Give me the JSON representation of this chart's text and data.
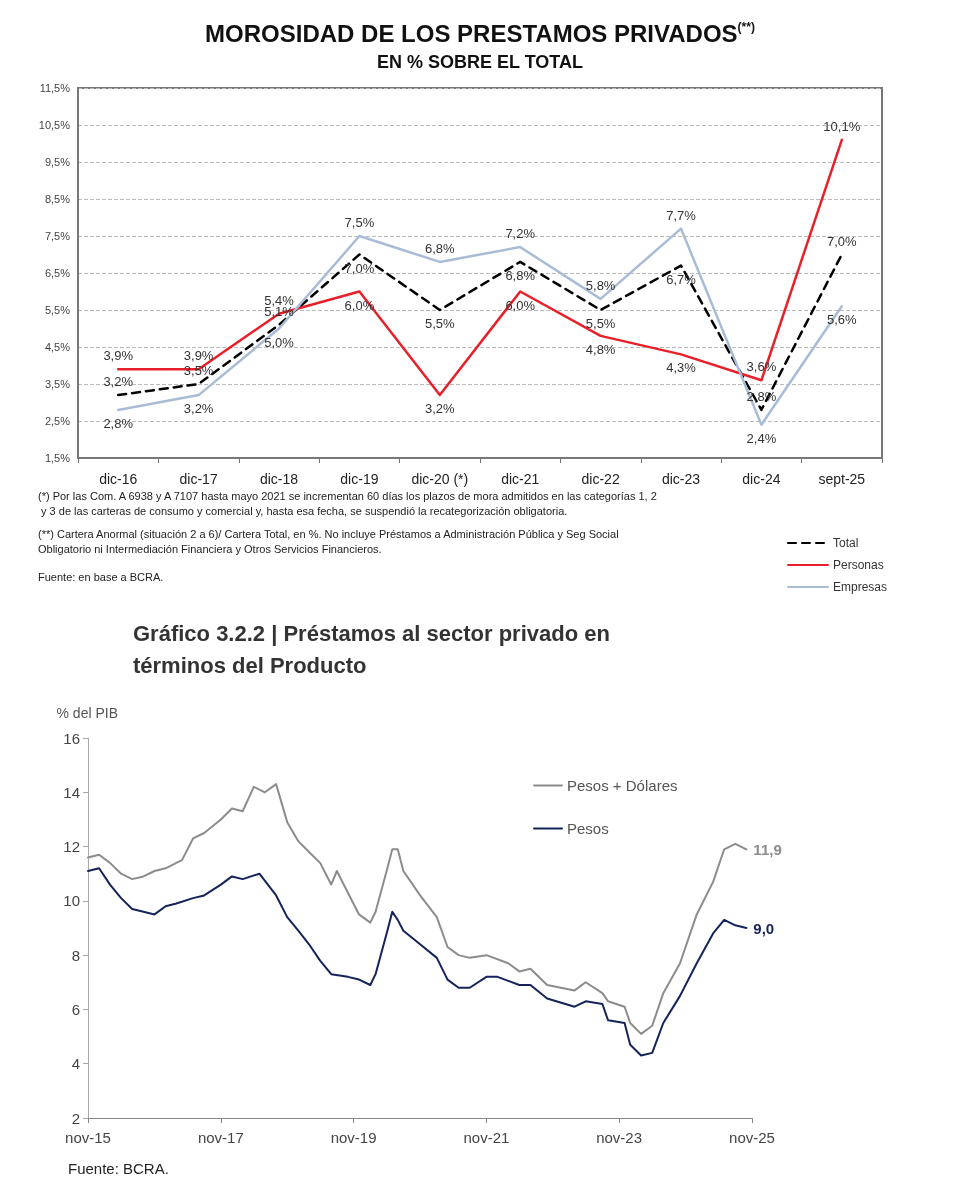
{
  "chart_data": [
    {
      "type": "line",
      "title": "MOROSIDAD DE LOS PRESTAMOS PRIVADOS$^{(**)}$",
      "subtitle": "EN % SOBRE EL TOTAL",
      "categories": [
        "dic-16",
        "dic-17",
        "dic-18",
        "dic-19",
        "dic-20 (*)",
        "dic-21",
        "dic-22",
        "dic-23",
        "dic-24",
        "sept-25"
      ],
      "series": [
        {
          "name": "Total",
          "color": "#000000",
          "line_style": "dashed",
          "values": [
            3.2,
            3.5,
            5.1,
            7.0,
            5.5,
            6.8,
            5.5,
            6.7,
            2.8,
            7.0
          ],
          "value_labels": [
            "3,2%",
            "3,5%",
            "5,1%",
            "7,0%",
            "5,5%",
            "6,8%",
            "5,5%",
            "6,7%",
            "2,8%",
            "7,0%"
          ]
        },
        {
          "name": "Personas",
          "color": "#e8202a",
          "line_style": "solid",
          "values": [
            3.9,
            3.9,
            5.4,
            6.0,
            3.2,
            6.0,
            4.8,
            4.3,
            3.6,
            10.1
          ],
          "value_labels": [
            "3,9%",
            "3,9%",
            "5,4%",
            "6,0%",
            "3,2%",
            "6,0%",
            "4,8%",
            "4,3%",
            "3,6%",
            "10,1%"
          ]
        },
        {
          "name": "Empresas",
          "color": "#a9bcd6",
          "line_style": "solid",
          "values": [
            2.8,
            3.2,
            5.0,
            7.5,
            6.8,
            7.2,
            5.8,
            7.7,
            2.4,
            5.6
          ],
          "value_labels": [
            "2,8%",
            "3,2%",
            "5,0%",
            "7,5%",
            "6,8%",
            "7,2%",
            "5,8%",
            "7,7%",
            "2,4%",
            "5,6%"
          ]
        }
      ],
      "ylim": [
        1.5,
        11.5
      ],
      "yticks": [
        {
          "value": 1.5,
          "label": "1,5%"
        },
        {
          "value": 2.5,
          "label": "2,5%"
        },
        {
          "value": 3.5,
          "label": "3,5%"
        },
        {
          "value": 4.5,
          "label": "4,5%"
        },
        {
          "value": 5.5,
          "label": "5,5%"
        },
        {
          "value": 6.5,
          "label": "6,5%"
        },
        {
          "value": 7.5,
          "label": "7,5%"
        },
        {
          "value": 8.5,
          "label": "8,5%"
        },
        {
          "value": 9.5,
          "label": "9,5%"
        },
        {
          "value": 10.5,
          "label": "10,5%"
        },
        {
          "value": 11.5,
          "label": "11,5%"
        }
      ],
      "grid": "y",
      "legend": "bottom right",
      "annotations": [
        "(*) Por las Com. A 6938 y A 7107 hasta mayo 2021 se incrementan 60 días los plazos de mora admitidos en las categorías 1, 2 y 3 de las carteras de consumo y comercial y, hasta esa fecha, se suspendió la recategorización obligatoria.",
        "(**) Cartera Anormal (situación 2 a 6)/ Cartera Total, en %. No incluye Préstamos a Administración Pública y Seg Social Obligatorio ni Intermediación Financiera y Otros Servicios Financieros.",
        "Fuente: en base a BCRA."
      ]
    },
    {
      "type": "line",
      "title": "Gráfico 3.2.2 | Préstamos al sector privado en términos del Producto",
      "ylabel": "% del PIB",
      "xlim": [
        "2015-11",
        "2025-11"
      ],
      "xticks": [
        {
          "value": "2015-11",
          "label": "nov-15"
        },
        {
          "value": "2017-11",
          "label": "nov-17"
        },
        {
          "value": "2019-11",
          "label": "nov-19"
        },
        {
          "value": "2021-11",
          "label": "nov-21"
        },
        {
          "value": "2023-11",
          "label": "nov-23"
        },
        {
          "value": "2025-11",
          "label": "nov-25"
        }
      ],
      "ylim": [
        2,
        16
      ],
      "yticks": [
        2,
        4,
        6,
        8,
        10,
        12,
        14,
        16
      ],
      "legend": "top",
      "series": [
        {
          "name": "Pesos + Dólares",
          "color": "#8c8c8c",
          "x": [
            "2015-11",
            "2016-01",
            "2016-03",
            "2016-05",
            "2016-07",
            "2016-09",
            "2016-11",
            "2017-01",
            "2017-03",
            "2017-04",
            "2017-06",
            "2017-08",
            "2017-11",
            "2018-01",
            "2018-03",
            "2018-05",
            "2018-07",
            "2018-09",
            "2018-11",
            "2019-01",
            "2019-03",
            "2019-05",
            "2019-07",
            "2019-08",
            "2019-10",
            "2019-12",
            "2020-02",
            "2020-03",
            "2020-05",
            "2020-06",
            "2020-07",
            "2020-08",
            "2020-11",
            "2021-02",
            "2021-04",
            "2021-06",
            "2021-08",
            "2021-11",
            "2022-03",
            "2022-05",
            "2022-07",
            "2022-10",
            "2023-03",
            "2023-05",
            "2023-08",
            "2023-09",
            "2023-12",
            "2024-01",
            "2024-03",
            "2024-05",
            "2024-07",
            "2024-10",
            "2025-01",
            "2025-04",
            "2025-06",
            "2025-08",
            "2025-10"
          ],
          "values": [
            11.6,
            11.7,
            11.4,
            11.0,
            10.8,
            10.9,
            11.1,
            11.2,
            11.4,
            11.5,
            12.3,
            12.5,
            13.0,
            13.4,
            13.3,
            14.2,
            14.0,
            14.3,
            12.9,
            12.2,
            11.8,
            11.4,
            10.6,
            11.1,
            10.3,
            9.5,
            9.2,
            9.6,
            11.1,
            11.9,
            11.9,
            11.1,
            10.2,
            9.4,
            8.3,
            8.0,
            7.9,
            8.0,
            7.7,
            7.4,
            7.5,
            6.9,
            6.7,
            7.0,
            6.6,
            6.3,
            6.1,
            5.5,
            5.1,
            5.4,
            6.6,
            7.7,
            9.5,
            10.7,
            11.9,
            12.1,
            11.9
          ],
          "value_labels": [
            null,
            null,
            null,
            null,
            null,
            null,
            null,
            null,
            null,
            null,
            null,
            null,
            null,
            null,
            null,
            null,
            null,
            null,
            null,
            null,
            null,
            null,
            null,
            null,
            null,
            null,
            null,
            null,
            null,
            null,
            null,
            null,
            null,
            null,
            null,
            null,
            null,
            null,
            null,
            null,
            null,
            null,
            null,
            null,
            null,
            null,
            null,
            null,
            null,
            null,
            null,
            null,
            null,
            null,
            null,
            null,
            "11,9"
          ]
        },
        {
          "name": "Pesos",
          "color": "#14235a",
          "x": [
            "2015-11",
            "2016-01",
            "2016-03",
            "2016-05",
            "2016-07",
            "2016-09",
            "2016-11",
            "2017-01",
            "2017-03",
            "2017-06",
            "2017-08",
            "2017-11",
            "2018-01",
            "2018-03",
            "2018-06",
            "2018-09",
            "2018-11",
            "2019-01",
            "2019-03",
            "2019-05",
            "2019-07",
            "2019-10",
            "2019-12",
            "2020-02",
            "2020-03",
            "2020-05",
            "2020-06",
            "2020-07",
            "2020-08",
            "2020-11",
            "2021-02",
            "2021-04",
            "2021-06",
            "2021-08",
            "2021-11",
            "2022-01",
            "2022-05",
            "2022-07",
            "2022-10",
            "2023-03",
            "2023-05",
            "2023-08",
            "2023-09",
            "2023-12",
            "2024-01",
            "2024-03",
            "2024-05",
            "2024-07",
            "2024-10",
            "2025-01",
            "2025-04",
            "2025-06",
            "2025-08",
            "2025-10"
          ],
          "values": [
            11.1,
            11.2,
            10.6,
            10.1,
            9.7,
            9.6,
            9.5,
            9.8,
            9.9,
            10.1,
            10.2,
            10.6,
            10.9,
            10.8,
            11.0,
            10.2,
            9.4,
            8.9,
            8.4,
            7.8,
            7.3,
            7.2,
            7.1,
            6.9,
            7.3,
            8.8,
            9.6,
            9.3,
            8.9,
            8.4,
            7.9,
            7.1,
            6.8,
            6.8,
            7.2,
            7.2,
            6.9,
            6.9,
            6.4,
            6.1,
            6.3,
            6.2,
            5.6,
            5.5,
            4.7,
            4.3,
            4.4,
            5.5,
            6.5,
            7.7,
            8.8,
            9.3,
            9.1,
            9.0
          ],
          "value_labels": [
            null,
            null,
            null,
            null,
            null,
            null,
            null,
            null,
            null,
            null,
            null,
            null,
            null,
            null,
            null,
            null,
            null,
            null,
            null,
            null,
            null,
            null,
            null,
            null,
            null,
            null,
            null,
            null,
            null,
            null,
            null,
            null,
            null,
            null,
            null,
            null,
            null,
            null,
            null,
            null,
            null,
            null,
            null,
            null,
            null,
            null,
            null,
            null,
            null,
            null,
            null,
            null,
            null,
            "9,0"
          ]
        }
      ],
      "annotations": [
        "Fuente: BCRA."
      ]
    }
  ]
}
